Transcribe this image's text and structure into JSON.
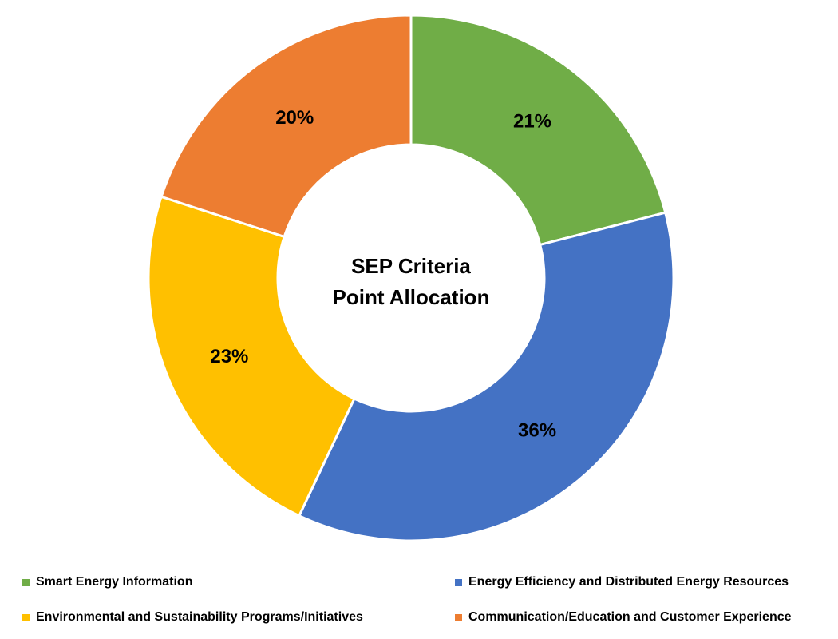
{
  "chart_data": {
    "type": "pie",
    "variant": "donut",
    "title": "SEP Criteria Point Allocation",
    "title_lines": [
      "SEP Criteria",
      "Point Allocation"
    ],
    "categories": [
      "Smart Energy Information",
      "Energy Efficiency and Distributed Energy Resources",
      "Environmental and Sustainability Programs/Initiatives",
      "Communication/Education and Customer Experience"
    ],
    "values": [
      21,
      36,
      23,
      20
    ],
    "labels": [
      "21%",
      "36%",
      "23%",
      "20%"
    ],
    "colors": [
      "#70AD47",
      "#4472C4",
      "#FFC000",
      "#ED7D31"
    ],
    "slice_order": [
      "Smart Energy Information",
      "Energy Efficiency and Distributed Energy Resources",
      "Environmental and Sustainability Programs/Initiatives",
      "Communication/Education and Customer Experience"
    ],
    "start_angle": "top, clockwise",
    "legend_position": "bottom"
  }
}
